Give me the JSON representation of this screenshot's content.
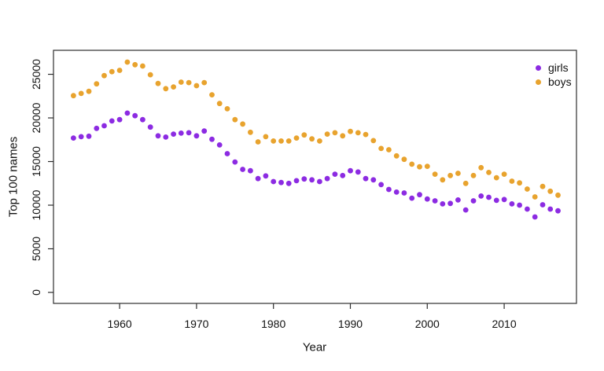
{
  "colors": {
    "background": "#ffffff",
    "axis": "#2e2e2e",
    "text": "#111111",
    "girls": "#8C2BE2",
    "boys": "#E8A32E"
  },
  "chart_data": {
    "type": "scatter",
    "title": "",
    "xlabel": "Year",
    "ylabel": "Top 100 names",
    "grid": false,
    "legend_position": "top-right",
    "point_shape": "filled-circle",
    "x_ticks": [
      1960,
      1970,
      1980,
      1990,
      2000,
      2010
    ],
    "y_ticks": [
      0,
      5000,
      10000,
      15000,
      20000,
      25000
    ],
    "xlim": [
      1951.4,
      2019.4
    ],
    "ylim": [
      -1260,
      27750
    ],
    "years": [
      1954,
      1955,
      1956,
      1957,
      1958,
      1959,
      1960,
      1961,
      1962,
      1963,
      1964,
      1965,
      1966,
      1967,
      1968,
      1969,
      1970,
      1971,
      1972,
      1973,
      1974,
      1975,
      1976,
      1977,
      1978,
      1979,
      1980,
      1981,
      1982,
      1983,
      1984,
      1985,
      1986,
      1987,
      1988,
      1989,
      1990,
      1991,
      1992,
      1993,
      1994,
      1995,
      1996,
      1997,
      1998,
      1999,
      2000,
      2001,
      2002,
      2003,
      2004,
      2005,
      2006,
      2007,
      2008,
      2009,
      2010,
      2011,
      2012,
      2013,
      2014,
      2015,
      2016,
      2017
    ],
    "series": [
      {
        "name": "girls",
        "color": "#8C2BE2",
        "values": [
          17700,
          17850,
          17900,
          18800,
          19100,
          19650,
          19800,
          20550,
          20250,
          19800,
          18950,
          17950,
          17800,
          18150,
          18250,
          18300,
          17950,
          18500,
          17550,
          16900,
          15900,
          14950,
          14100,
          13950,
          13050,
          13350,
          12700,
          12600,
          12500,
          12800,
          13000,
          12900,
          12700,
          13050,
          13550,
          13400,
          13950,
          13800,
          13050,
          12900,
          12350,
          11800,
          11500,
          11400,
          10800,
          11200,
          10700,
          10500,
          10150,
          10200,
          10600,
          9450,
          10500,
          11050,
          10900,
          10550,
          10650,
          10150,
          10000,
          9550,
          8650,
          10050,
          9550,
          9350
        ]
      },
      {
        "name": "boys",
        "color": "#E8A32E",
        "values": [
          22550,
          22800,
          23050,
          23900,
          24850,
          25300,
          25450,
          26400,
          26100,
          25950,
          24950,
          23950,
          23350,
          23550,
          24100,
          24050,
          23700,
          24050,
          22650,
          21650,
          21050,
          19800,
          19300,
          18350,
          17250,
          17850,
          17350,
          17350,
          17350,
          17700,
          18050,
          17600,
          17350,
          18150,
          18300,
          17950,
          18450,
          18300,
          18100,
          17400,
          16500,
          16350,
          15650,
          15250,
          14700,
          14400,
          14450,
          13550,
          12900,
          13400,
          13650,
          12500,
          13400,
          14300,
          13750,
          13150,
          13550,
          12750,
          12550,
          11850,
          10950,
          12150,
          11600,
          11150
        ]
      }
    ]
  }
}
